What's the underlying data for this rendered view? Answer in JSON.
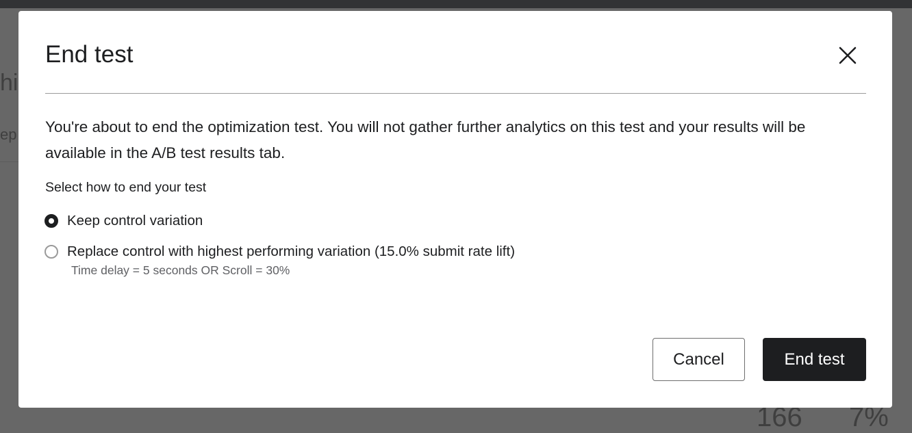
{
  "background": {
    "fragments": [
      "hi",
      "ep",
      "166",
      "7%"
    ]
  },
  "modal": {
    "title": "End test",
    "close_icon": "close-icon",
    "description": "You're about to end the optimization test. You will not gather further analytics on this test and your results will be available in the A/B test results tab.",
    "options_label": "Select how to end your test",
    "options": [
      {
        "label": "Keep control variation",
        "selected": true
      },
      {
        "label": "Replace control with highest performing variation (15.0% submit rate lift)",
        "selected": false,
        "help": "Time delay = 5 seconds OR Scroll = 30%"
      }
    ],
    "cancel_label": "Cancel",
    "confirm_label": "End test"
  },
  "colors": {
    "primary": "#1d1e20",
    "backdrop": "#676767"
  }
}
